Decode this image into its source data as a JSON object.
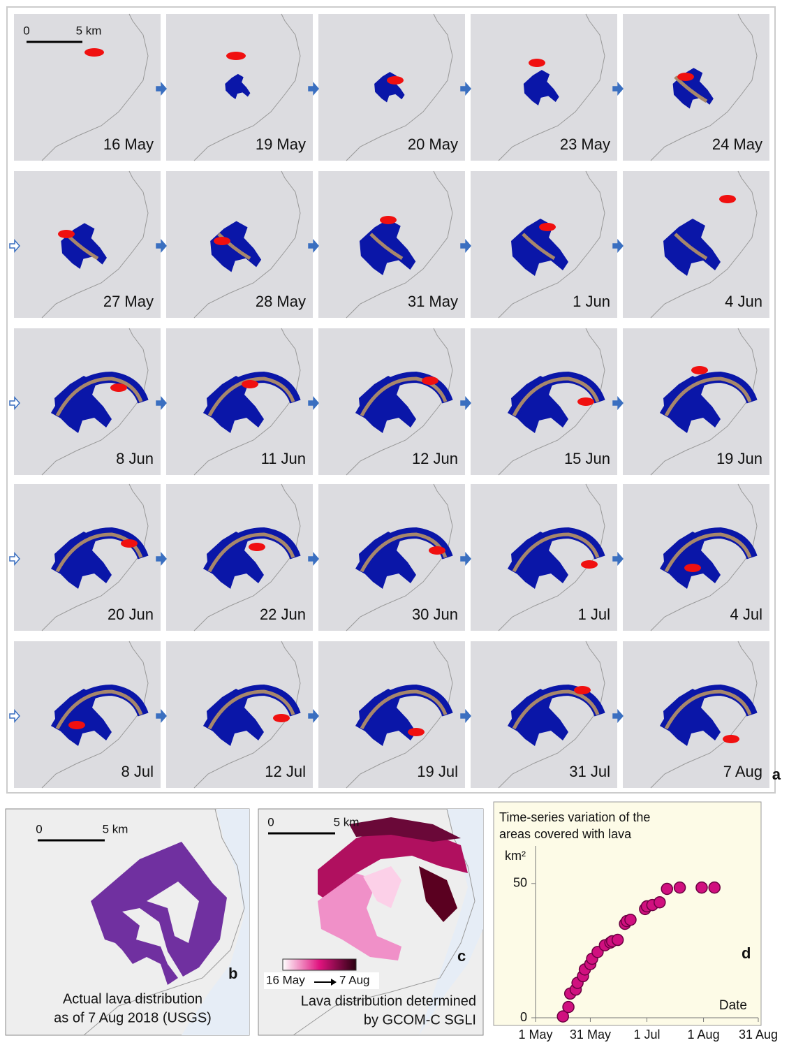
{
  "panel_a": {
    "label": "a",
    "scale": {
      "zero": "0",
      "length": "5 km"
    },
    "dates": [
      "16 May",
      "19 May",
      "20 May",
      "23 May",
      "24 May",
      "27 May",
      "28 May",
      "31 May",
      "1 Jun",
      "4 Jun",
      "8 Jun",
      "11 Jun",
      "12 Jun",
      "15 Jun",
      "19 Jun",
      "20 Jun",
      "22 Jun",
      "30 Jun",
      "1 Jul",
      "4 Jul",
      "8 Jul",
      "12 Jul",
      "19 Jul",
      "31 Jul",
      "7 Aug"
    ]
  },
  "panel_b": {
    "label": "b",
    "scale": {
      "zero": "0",
      "length": "5 km"
    },
    "caption": [
      "Actual lava distribution",
      "as of 7 Aug 2018  (USGS)"
    ]
  },
  "panel_c": {
    "label": "c",
    "scale": {
      "zero": "0",
      "length": "5 km"
    },
    "colorbar": {
      "start": "16 May",
      "end": "7 Aug"
    },
    "caption": [
      "Lava distribution determined",
      "by GCOM-C SGLI"
    ]
  },
  "chart_data": {
    "type": "scatter",
    "label": "d",
    "title": [
      "Time-series variation of the",
      "areas covered with lava"
    ],
    "y_label": "km²",
    "x_label": "Date",
    "x": [
      15,
      18,
      19,
      22,
      23,
      26,
      27,
      30,
      31,
      34,
      38,
      41,
      42,
      45,
      49,
      50,
      52,
      60,
      61,
      64,
      68,
      72,
      79,
      91,
      98
    ],
    "values": [
      0.5,
      4,
      9,
      10.5,
      13,
      15.5,
      18,
      20,
      22,
      24.5,
      27,
      28,
      28.5,
      29,
      35,
      36,
      36.5,
      40.5,
      41.5,
      42,
      43,
      48,
      48.5,
      48.5,
      48.5
    ],
    "xlim": [
      0,
      122
    ],
    "ylim": [
      0,
      64
    ],
    "xticks": [
      {
        "value": 0,
        "label": "1 May"
      },
      {
        "value": 30,
        "label": "31 May"
      },
      {
        "value": 61,
        "label": "1 Jul"
      },
      {
        "value": 92,
        "label": "1 Aug"
      },
      {
        "value": 122,
        "label": "31 Aug"
      }
    ],
    "yticks": [
      0,
      50
    ],
    "color": "#d0107f"
  }
}
